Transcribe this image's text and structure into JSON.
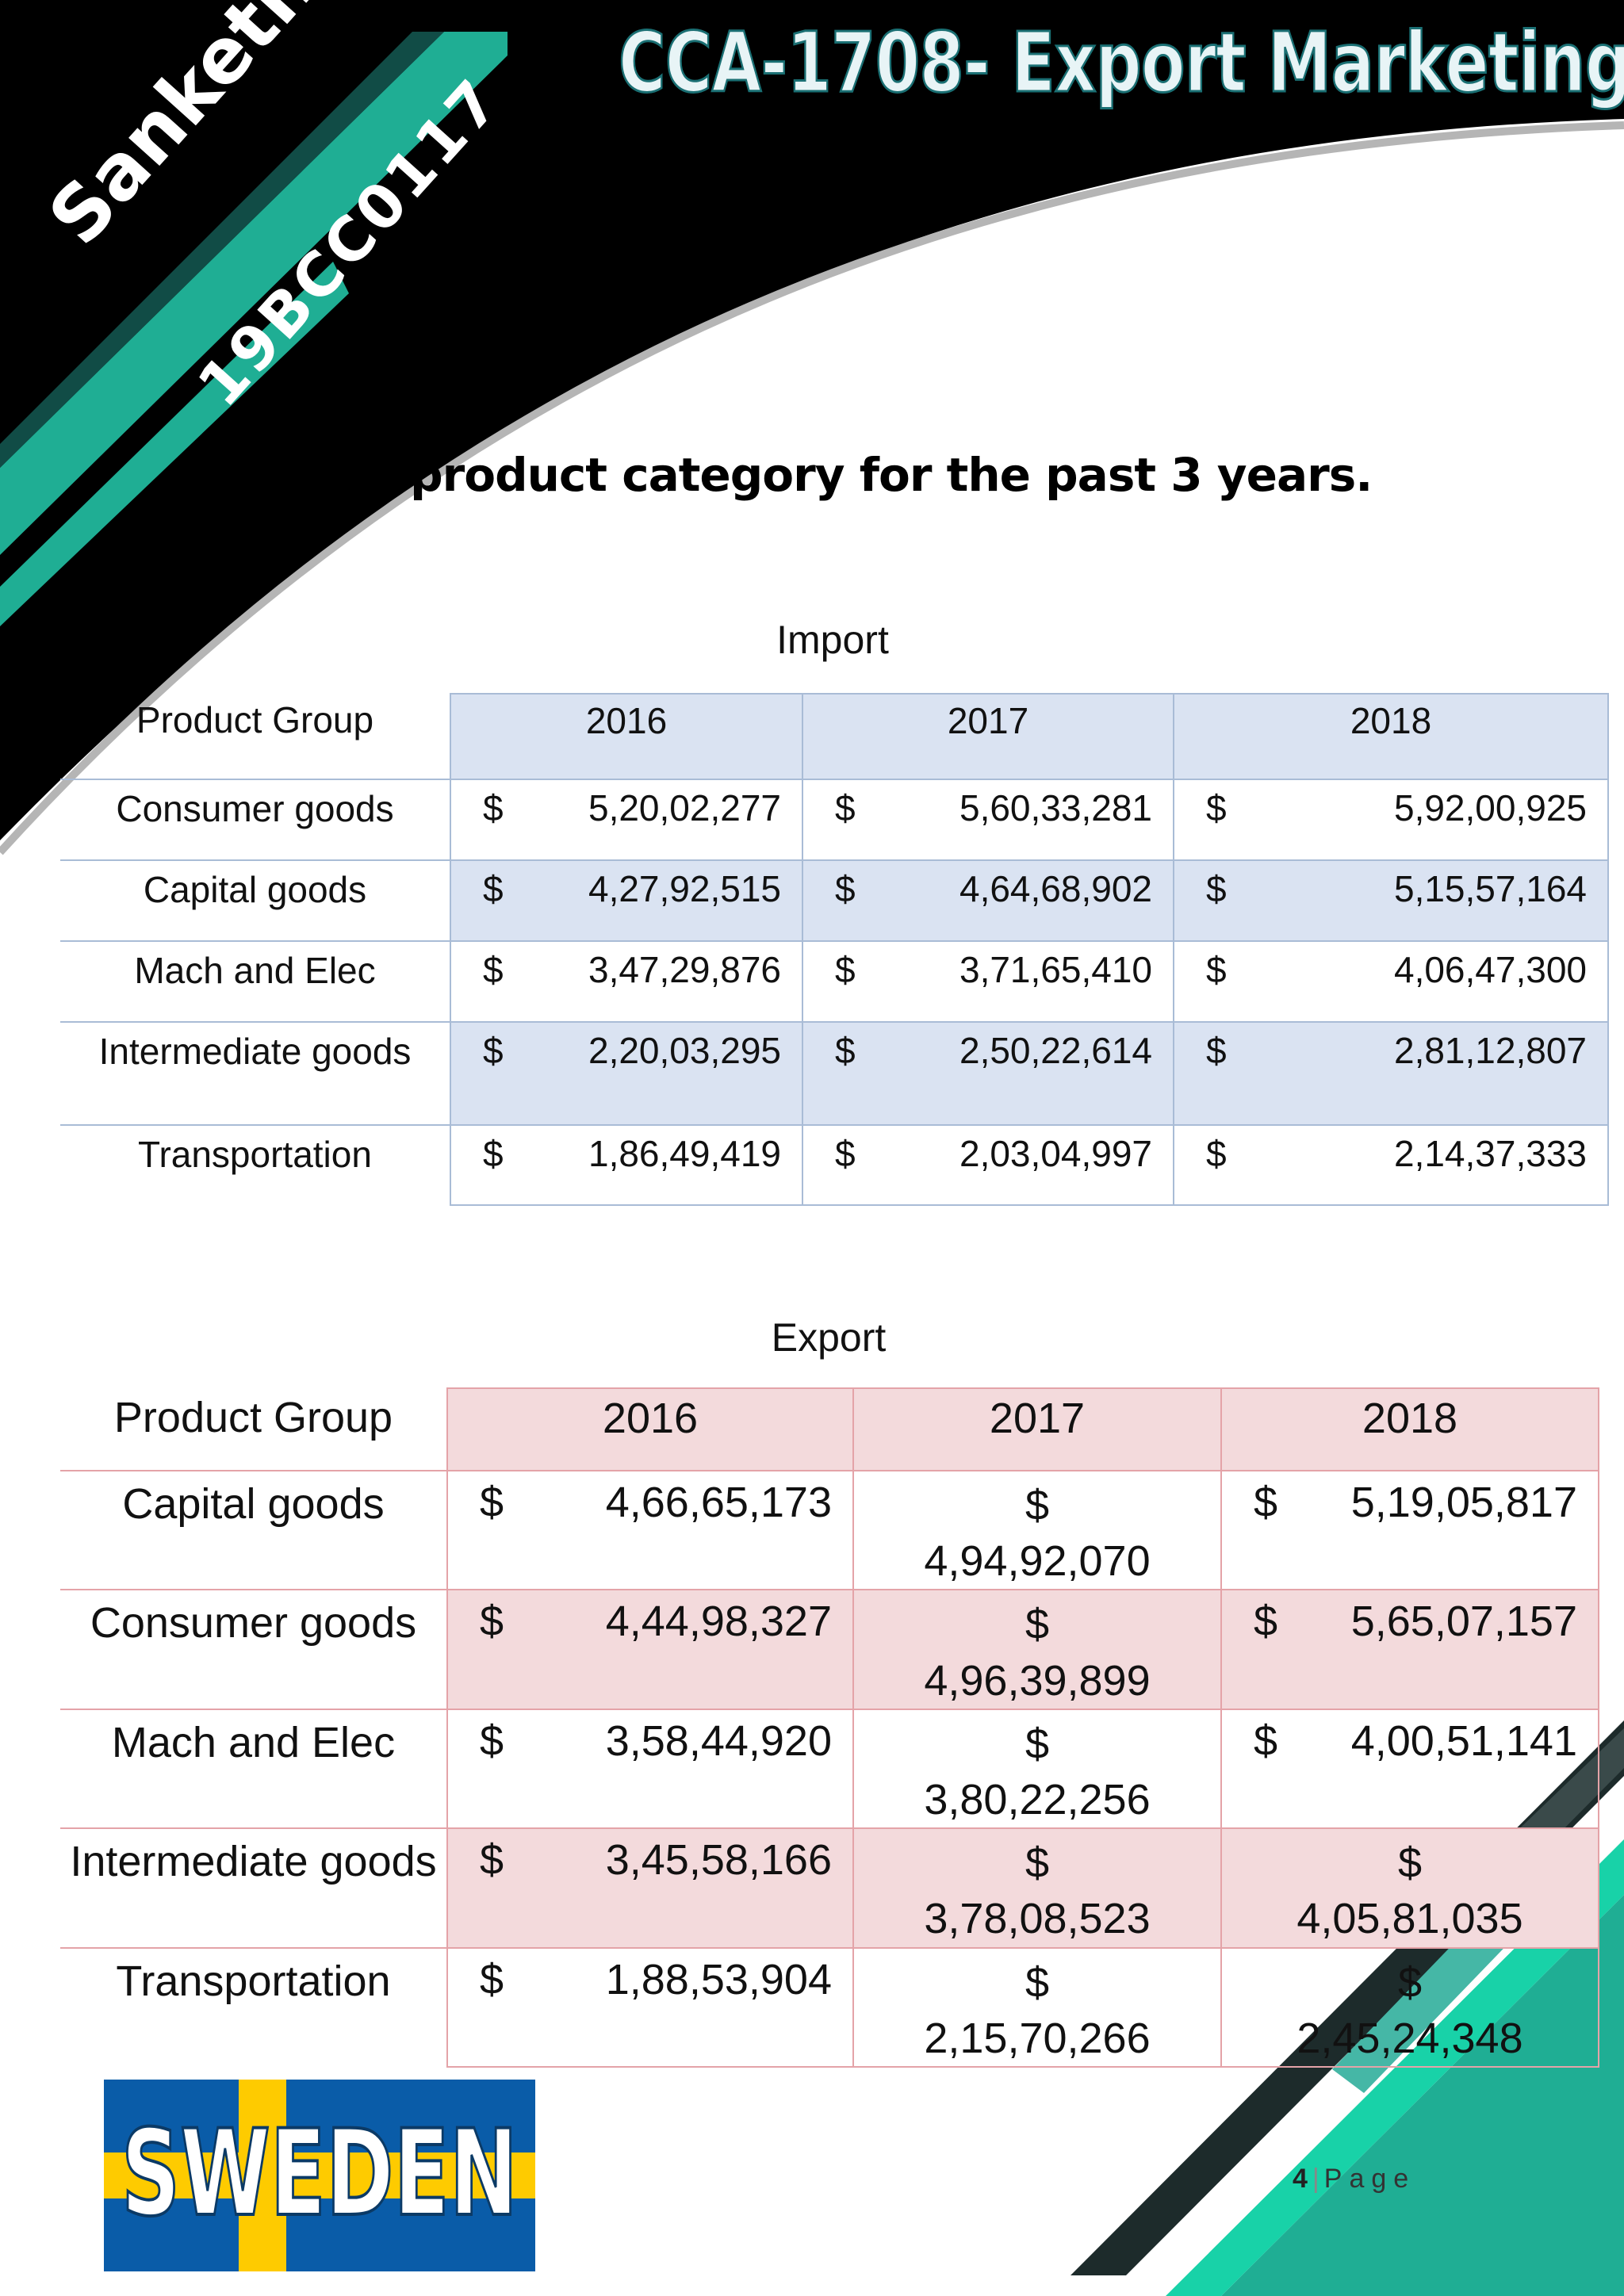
{
  "header": {
    "title": "CCA-1708- Export Marketing",
    "author": "Sanketh. R",
    "roll_number": "19BCC0117"
  },
  "heading": "Major product category for the past 3 years.",
  "import_table": {
    "caption": "Import",
    "columns": [
      "Product Group",
      "2016",
      "2017",
      "2018"
    ],
    "rows": [
      {
        "group": "Consumer goods",
        "values": [
          "5,20,02,277",
          "5,60,33,281",
          "5,92,00,925"
        ]
      },
      {
        "group": "Capital goods",
        "values": [
          "4,27,92,515",
          "4,64,68,902",
          "5,15,57,164"
        ]
      },
      {
        "group": "Mach and Elec",
        "values": [
          "3,47,29,876",
          "3,71,65,410",
          "4,06,47,300"
        ]
      },
      {
        "group": "Intermediate goods",
        "values": [
          "2,20,03,295",
          "2,50,22,614",
          "2,81,12,807"
        ]
      },
      {
        "group": "Transportation",
        "values": [
          "1,86,49,419",
          "2,03,04,997",
          "2,14,37,333"
        ]
      }
    ]
  },
  "export_table": {
    "caption": "Export",
    "columns": [
      "Product Group",
      "2016",
      "2017",
      "2018"
    ],
    "rows": [
      {
        "group": "Capital goods",
        "values": [
          "4,66,65,173",
          "4,94,92,070",
          "5,19,05,817"
        ]
      },
      {
        "group": "Consumer goods",
        "values": [
          "4,44,98,327",
          "4,96,39,899",
          "5,65,07,157"
        ]
      },
      {
        "group": "Mach and Elec",
        "values": [
          "3,58,44,920",
          "3,80,22,256",
          "4,00,51,141"
        ]
      },
      {
        "group": "Intermediate goods",
        "values": [
          "3,45,58,166",
          "3,78,08,523",
          "4,05,81,035"
        ]
      },
      {
        "group": "Transportation",
        "values": [
          "1,88,53,904",
          "2,15,70,266",
          "2,45,24,348"
        ]
      }
    ]
  },
  "currency_symbol": "$",
  "logo_text": "SWEDEN",
  "footer": {
    "page_number": "4",
    "separator": "|",
    "page_label": "Page"
  },
  "colors": {
    "accent_teal": "#1fae94",
    "dark_teal": "#165c53",
    "import_fill": "#dae3f2",
    "export_fill": "#f3dadc",
    "flag_blue": "#0a5ca8",
    "flag_yellow": "#fecb00"
  }
}
